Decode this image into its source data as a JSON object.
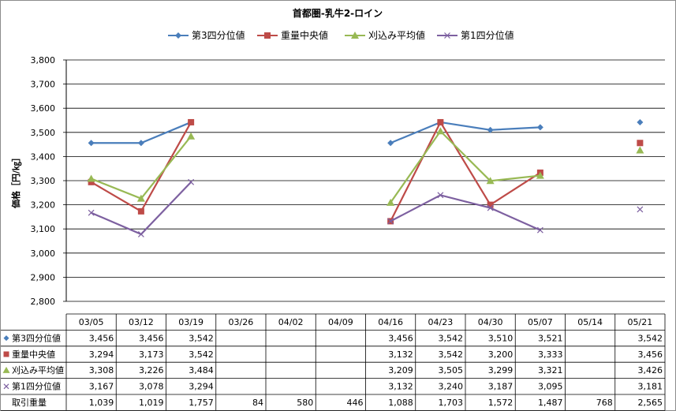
{
  "chart_data": {
    "type": "line",
    "title": "首都圏-乳牛2-ロイン",
    "ylabel": "価格［円/㎏］",
    "ylim": [
      2800,
      3800
    ],
    "yticks": [
      "2,800",
      "2,900",
      "3,000",
      "3,100",
      "3,200",
      "3,300",
      "3,400",
      "3,500",
      "3,600",
      "3,700",
      "3,800"
    ],
    "grid": true,
    "legend_position": "top",
    "categories": [
      "03/05",
      "03/12",
      "03/19",
      "03/26",
      "04/02",
      "04/09",
      "04/16",
      "04/23",
      "04/30",
      "05/07",
      "05/14",
      "05/21"
    ],
    "series": [
      {
        "name": "第3四分位値",
        "color": "#4a7ebb",
        "marker": "diamond",
        "values": [
          3456,
          3456,
          3542,
          null,
          null,
          null,
          3456,
          3542,
          3510,
          3521,
          null,
          3542
        ],
        "labels": [
          "3,456",
          "3,456",
          "3,542",
          "",
          "",
          "",
          "3,456",
          "3,542",
          "3,510",
          "3,521",
          "",
          "3,542"
        ]
      },
      {
        "name": "重量中央値",
        "color": "#be4b48",
        "marker": "square",
        "values": [
          3294,
          3173,
          3542,
          null,
          null,
          null,
          3132,
          3542,
          3200,
          3333,
          null,
          3456
        ],
        "labels": [
          "3,294",
          "3,173",
          "3,542",
          "",
          "",
          "",
          "3,132",
          "3,542",
          "3,200",
          "3,333",
          "",
          "3,456"
        ]
      },
      {
        "name": "刈込み平均値",
        "color": "#98b954",
        "marker": "triangle",
        "values": [
          3308,
          3226,
          3484,
          null,
          null,
          null,
          3209,
          3505,
          3299,
          3321,
          null,
          3426
        ],
        "labels": [
          "3,308",
          "3,226",
          "3,484",
          "",
          "",
          "",
          "3,209",
          "3,505",
          "3,299",
          "3,321",
          "",
          "3,426"
        ]
      },
      {
        "name": "第1四分位値",
        "color": "#7d60a0",
        "marker": "x",
        "values": [
          3167,
          3078,
          3294,
          null,
          null,
          null,
          3132,
          3240,
          3187,
          3095,
          null,
          3181
        ],
        "labels": [
          "3,167",
          "3,078",
          "3,294",
          "",
          "",
          "",
          "3,132",
          "3,240",
          "3,187",
          "3,095",
          "",
          "3,181"
        ]
      }
    ],
    "table_extra_row": {
      "name": "取引重量",
      "labels": [
        "1,039",
        "1,019",
        "1,757",
        "84",
        "580",
        "446",
        "1,088",
        "1,703",
        "1,572",
        "1,487",
        "768",
        "2,565"
      ]
    }
  }
}
